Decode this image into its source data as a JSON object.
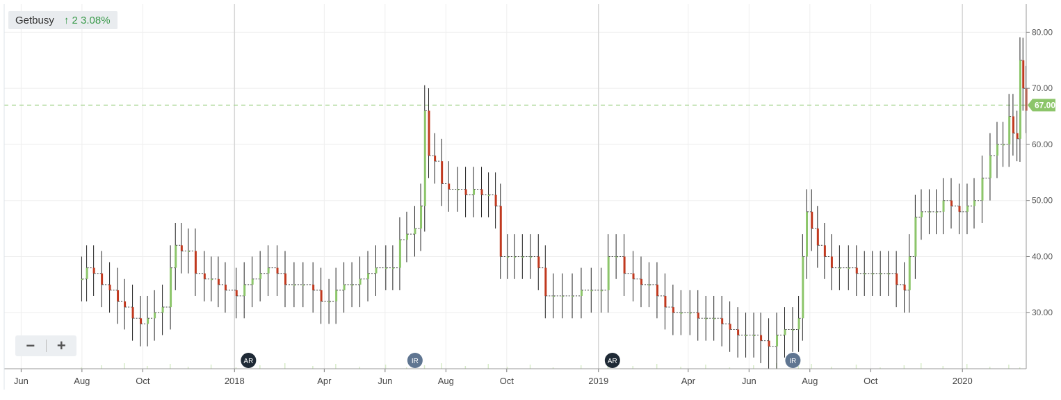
{
  "ticker": {
    "name": "Getbusy",
    "change": "↑ 2 3.08%"
  },
  "zoom": {
    "minus": "−",
    "plus": "+"
  },
  "last_price_label": "67.00",
  "colors": {
    "up": "#8cc56a",
    "down": "#c0391f",
    "grid": "#eeeeee",
    "price_line": "#a6d48e",
    "price_tag": "#8cc56a"
  },
  "chart_data": {
    "type": "line",
    "title": "",
    "xlabel": "",
    "ylabel": "",
    "ylim": [
      20,
      85
    ],
    "y_ticks": [
      30,
      40,
      50,
      60,
      70,
      80
    ],
    "y_tick_labels": [
      "30.00",
      "40.00",
      "50.00",
      "60.00",
      "70.00",
      "80.00"
    ],
    "x_range": [
      "2017-05-15",
      "2020-03-05"
    ],
    "x_ticks": [
      {
        "date": "2017-06-01",
        "label": "Jun"
      },
      {
        "date": "2017-08-01",
        "label": "Aug"
      },
      {
        "date": "2017-10-01",
        "label": "Oct"
      },
      {
        "date": "2018-01-01",
        "label": "2018"
      },
      {
        "date": "2018-04-01",
        "label": "Apr"
      },
      {
        "date": "2018-06-01",
        "label": "Jun"
      },
      {
        "date": "2018-08-01",
        "label": "Aug"
      },
      {
        "date": "2018-10-01",
        "label": "Oct"
      },
      {
        "date": "2019-01-01",
        "label": "2019"
      },
      {
        "date": "2019-04-01",
        "label": "Apr"
      },
      {
        "date": "2019-06-01",
        "label": "Jun"
      },
      {
        "date": "2019-08-01",
        "label": "Aug"
      },
      {
        "date": "2019-10-01",
        "label": "Oct"
      },
      {
        "date": "2020-01-01",
        "label": "2020"
      }
    ],
    "grid": true,
    "reference_line": 67.0,
    "series": [
      {
        "values": [
          [
            "2017-07-31",
            36
          ],
          [
            "2017-08-05",
            38
          ],
          [
            "2017-08-12",
            37
          ],
          [
            "2017-08-20",
            35
          ],
          [
            "2017-08-28",
            34
          ],
          [
            "2017-09-05",
            32
          ],
          [
            "2017-09-12",
            31
          ],
          [
            "2017-09-20",
            29
          ],
          [
            "2017-09-28",
            28
          ],
          [
            "2017-10-05",
            29
          ],
          [
            "2017-10-12",
            30
          ],
          [
            "2017-10-20",
            31
          ],
          [
            "2017-10-28",
            38
          ],
          [
            "2017-11-02",
            42
          ],
          [
            "2017-11-08",
            41
          ],
          [
            "2017-11-15",
            41
          ],
          [
            "2017-11-22",
            37
          ],
          [
            "2017-12-01",
            36
          ],
          [
            "2017-12-08",
            36
          ],
          [
            "2017-12-15",
            35
          ],
          [
            "2017-12-22",
            34
          ],
          [
            "2018-01-02",
            33
          ],
          [
            "2018-01-10",
            35
          ],
          [
            "2018-01-18",
            36
          ],
          [
            "2018-01-26",
            37
          ],
          [
            "2018-02-03",
            38
          ],
          [
            "2018-02-12",
            37
          ],
          [
            "2018-02-20",
            35
          ],
          [
            "2018-03-01",
            35
          ],
          [
            "2018-03-10",
            35
          ],
          [
            "2018-03-20",
            34
          ],
          [
            "2018-03-28",
            32
          ],
          [
            "2018-04-05",
            32
          ],
          [
            "2018-04-12",
            34
          ],
          [
            "2018-04-20",
            35
          ],
          [
            "2018-04-28",
            35
          ],
          [
            "2018-05-06",
            36
          ],
          [
            "2018-05-14",
            37
          ],
          [
            "2018-05-22",
            38
          ],
          [
            "2018-06-01",
            38
          ],
          [
            "2018-06-08",
            38
          ],
          [
            "2018-06-15",
            43
          ],
          [
            "2018-06-22",
            44
          ],
          [
            "2018-06-30",
            45
          ],
          [
            "2018-07-06",
            49
          ],
          [
            "2018-07-10",
            66
          ],
          [
            "2018-07-14",
            58
          ],
          [
            "2018-07-20",
            57
          ],
          [
            "2018-07-27",
            53
          ],
          [
            "2018-08-03",
            52
          ],
          [
            "2018-08-12",
            52
          ],
          [
            "2018-08-20",
            51
          ],
          [
            "2018-08-28",
            52
          ],
          [
            "2018-09-05",
            51
          ],
          [
            "2018-09-12",
            51
          ],
          [
            "2018-09-19",
            49
          ],
          [
            "2018-09-24",
            40
          ],
          [
            "2018-10-01",
            40
          ],
          [
            "2018-10-08",
            40
          ],
          [
            "2018-10-16",
            40
          ],
          [
            "2018-10-24",
            40
          ],
          [
            "2018-11-01",
            38
          ],
          [
            "2018-11-08",
            33
          ],
          [
            "2018-11-16",
            33
          ],
          [
            "2018-11-25",
            33
          ],
          [
            "2018-12-05",
            33
          ],
          [
            "2018-12-14",
            34
          ],
          [
            "2018-12-24",
            34
          ],
          [
            "2019-01-03",
            34
          ],
          [
            "2019-01-10",
            40
          ],
          [
            "2019-01-18",
            40
          ],
          [
            "2019-01-26",
            37
          ],
          [
            "2019-02-04",
            36
          ],
          [
            "2019-02-12",
            35
          ],
          [
            "2019-02-20",
            35
          ],
          [
            "2019-02-28",
            33
          ],
          [
            "2019-03-08",
            31
          ],
          [
            "2019-03-16",
            30
          ],
          [
            "2019-03-24",
            30
          ],
          [
            "2019-04-02",
            30
          ],
          [
            "2019-04-10",
            29
          ],
          [
            "2019-04-18",
            29
          ],
          [
            "2019-04-26",
            29
          ],
          [
            "2019-05-04",
            28
          ],
          [
            "2019-05-12",
            27
          ],
          [
            "2019-05-20",
            26
          ],
          [
            "2019-05-28",
            26
          ],
          [
            "2019-06-05",
            26
          ],
          [
            "2019-06-12",
            25
          ],
          [
            "2019-06-20",
            24
          ],
          [
            "2019-06-28",
            26
          ],
          [
            "2019-07-06",
            27
          ],
          [
            "2019-07-14",
            27
          ],
          [
            "2019-07-20",
            29
          ],
          [
            "2019-07-24",
            40
          ],
          [
            "2019-07-28",
            48
          ],
          [
            "2019-08-02",
            45
          ],
          [
            "2019-08-08",
            42
          ],
          [
            "2019-08-15",
            40
          ],
          [
            "2019-08-22",
            38
          ],
          [
            "2019-08-30",
            38
          ],
          [
            "2019-09-08",
            38
          ],
          [
            "2019-09-16",
            37
          ],
          [
            "2019-09-24",
            37
          ],
          [
            "2019-10-02",
            37
          ],
          [
            "2019-10-10",
            37
          ],
          [
            "2019-10-18",
            37
          ],
          [
            "2019-10-26",
            35
          ],
          [
            "2019-11-03",
            34
          ],
          [
            "2019-11-08",
            40
          ],
          [
            "2019-11-14",
            47
          ],
          [
            "2019-11-20",
            48
          ],
          [
            "2019-11-28",
            48
          ],
          [
            "2019-12-05",
            48
          ],
          [
            "2019-12-12",
            50
          ],
          [
            "2019-12-20",
            49
          ],
          [
            "2019-12-28",
            48
          ],
          [
            "2020-01-05",
            49
          ],
          [
            "2020-01-12",
            50
          ],
          [
            "2020-01-20",
            54
          ],
          [
            "2020-01-28",
            58
          ],
          [
            "2020-02-04",
            60
          ],
          [
            "2020-02-10",
            60
          ],
          [
            "2020-02-16",
            65
          ],
          [
            "2020-02-20",
            62
          ],
          [
            "2020-02-24",
            61
          ],
          [
            "2020-02-27",
            75
          ],
          [
            "2020-03-01",
            70
          ],
          [
            "2020-03-04",
            66
          ]
        ]
      }
    ],
    "markers": [
      {
        "date": "2018-01-15",
        "label": "AR"
      },
      {
        "date": "2018-07-01",
        "label": "IR"
      },
      {
        "date": "2019-01-15",
        "label": "AR"
      },
      {
        "date": "2019-07-15",
        "label": "IR"
      }
    ]
  }
}
